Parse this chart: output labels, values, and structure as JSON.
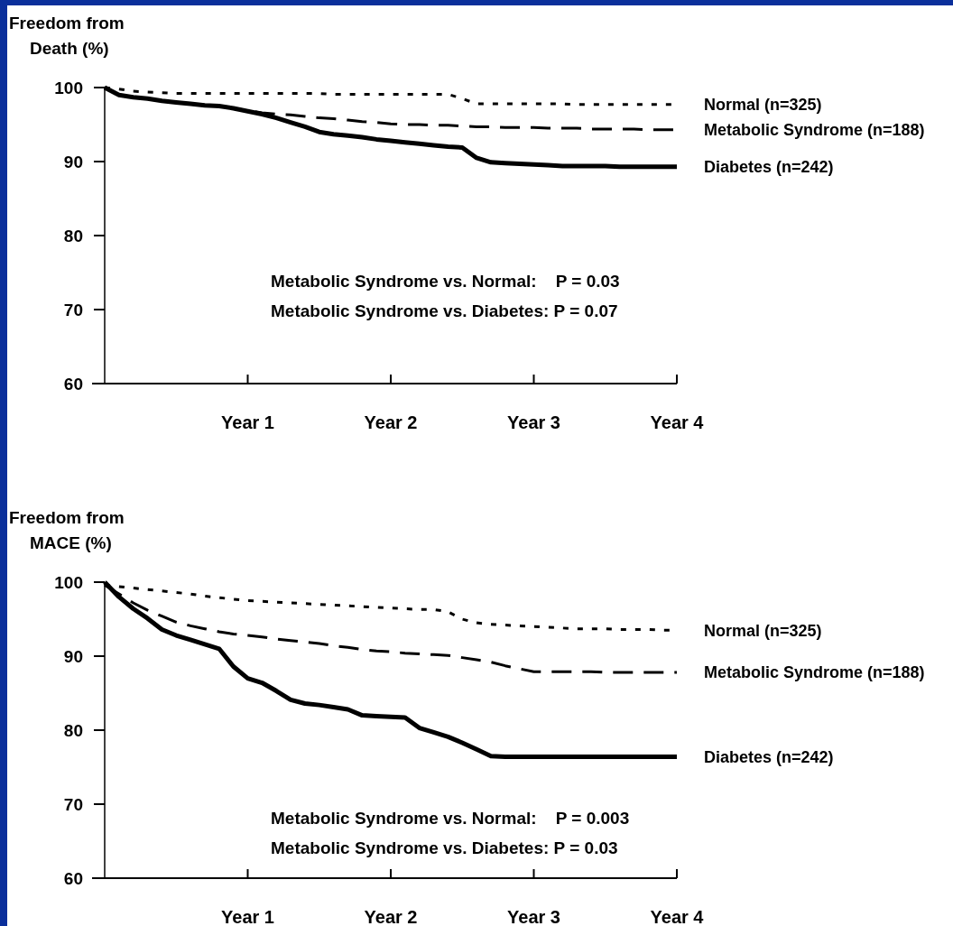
{
  "chart_data": [
    {
      "type": "line",
      "ylabel": "Freedom from\nDeath (%)",
      "categories": [
        null,
        null,
        null,
        null,
        null,
        null,
        null,
        null,
        null,
        null,
        "Year 1",
        null,
        null,
        null,
        null,
        null,
        null,
        null,
        null,
        null,
        "Year 2",
        null,
        null,
        null,
        null,
        null,
        null,
        null,
        null,
        null,
        "Year 3",
        null,
        null,
        null,
        null,
        null,
        null,
        null,
        null,
        null,
        "Year 4"
      ],
      "ylim": [
        60,
        100
      ],
      "yticks": [
        60,
        70,
        80,
        90,
        100
      ],
      "grid": false,
      "annotations": [
        "Metabolic Syndrome vs. Normal:    P = 0.03",
        "Metabolic Syndrome vs. Diabetes: P = 0.07"
      ],
      "series": [
        {
          "name": "Normal (n=325)",
          "color": "#000000",
          "line_style": "dotted",
          "values": [
            100,
            99.8,
            99.5,
            99.4,
            99.3,
            99.2,
            99.2,
            99.2,
            99.2,
            99.2,
            99.2,
            99.2,
            99.2,
            99.2,
            99.2,
            99.2,
            99.1,
            99.1,
            99.1,
            99.1,
            99.1,
            99.1,
            99.1,
            99.1,
            99.1,
            98.5,
            97.8,
            97.8,
            97.8,
            97.8,
            97.8,
            97.8,
            97.8,
            97.7,
            97.7,
            97.7,
            97.7,
            97.7,
            97.7,
            97.7,
            97.7
          ]
        },
        {
          "name": "Metabolic Syndrome (n=188)",
          "color": "#000000",
          "line_style": "dashed",
          "values": [
            100,
            99.0,
            98.7,
            98.5,
            98.2,
            98.0,
            97.8,
            97.6,
            97.5,
            97.2,
            96.9,
            96.6,
            96.4,
            96.3,
            96.1,
            95.9,
            95.8,
            95.6,
            95.4,
            95.3,
            95.1,
            95.0,
            95.0,
            94.9,
            94.9,
            94.8,
            94.7,
            94.7,
            94.6,
            94.6,
            94.6,
            94.5,
            94.5,
            94.5,
            94.4,
            94.4,
            94.4,
            94.4,
            94.3,
            94.3,
            94.3
          ]
        },
        {
          "name": "Diabetes (n=242)",
          "color": "#000000",
          "line_style": "solid",
          "values": [
            100,
            99.0,
            98.7,
            98.5,
            98.2,
            98.0,
            97.8,
            97.6,
            97.5,
            97.2,
            96.8,
            96.4,
            95.9,
            95.3,
            94.7,
            94.0,
            93.7,
            93.5,
            93.3,
            93.0,
            92.8,
            92.6,
            92.4,
            92.2,
            92.0,
            91.9,
            90.5,
            89.9,
            89.8,
            89.7,
            89.6,
            89.5,
            89.4,
            89.4,
            89.4,
            89.4,
            89.3,
            89.3,
            89.3,
            89.3,
            89.3
          ]
        }
      ]
    },
    {
      "type": "line",
      "ylabel": "Freedom from\nMACE (%)",
      "categories": [
        null,
        null,
        null,
        null,
        null,
        null,
        null,
        null,
        null,
        null,
        "Year 1",
        null,
        null,
        null,
        null,
        null,
        null,
        null,
        null,
        null,
        "Year 2",
        null,
        null,
        null,
        null,
        null,
        null,
        null,
        null,
        null,
        "Year 3",
        null,
        null,
        null,
        null,
        null,
        null,
        null,
        null,
        null,
        "Year 4"
      ],
      "ylim": [
        60,
        100
      ],
      "yticks": [
        60,
        70,
        80,
        90,
        100
      ],
      "grid": false,
      "annotations": [
        "Metabolic Syndrome vs. Normal:    P = 0.003",
        "Metabolic Syndrome vs. Diabetes: P = 0.03"
      ],
      "series": [
        {
          "name": "Normal (n=325)",
          "color": "#000000",
          "line_style": "dotted",
          "values": [
            99.6,
            99.4,
            99.2,
            99.0,
            98.8,
            98.6,
            98.4,
            98.1,
            97.9,
            97.7,
            97.5,
            97.4,
            97.3,
            97.2,
            97.1,
            97.0,
            96.9,
            96.8,
            96.7,
            96.6,
            96.5,
            96.4,
            96.3,
            96.3,
            96.0,
            95.0,
            94.5,
            94.3,
            94.2,
            94.1,
            94.0,
            93.9,
            93.8,
            93.7,
            93.7,
            93.7,
            93.6,
            93.6,
            93.6,
            93.5,
            93.5
          ]
        },
        {
          "name": "Metabolic Syndrome (n=188)",
          "color": "#000000",
          "line_style": "dashed",
          "values": [
            99.6,
            98.4,
            97.2,
            96.2,
            95.4,
            94.6,
            94.1,
            93.7,
            93.3,
            93.0,
            92.8,
            92.6,
            92.3,
            92.1,
            91.9,
            91.7,
            91.4,
            91.2,
            90.9,
            90.7,
            90.6,
            90.4,
            90.3,
            90.2,
            90.1,
            89.8,
            89.5,
            89.2,
            88.7,
            88.3,
            87.9,
            87.9,
            87.9,
            87.9,
            87.9,
            87.8,
            87.8,
            87.8,
            87.8,
            87.8,
            87.8
          ]
        },
        {
          "name": "Diabetes (n=242)",
          "color": "#000000",
          "line_style": "solid",
          "values": [
            100,
            98.0,
            96.4,
            95.1,
            93.6,
            92.8,
            92.2,
            91.6,
            91.0,
            88.6,
            87.0,
            86.4,
            85.3,
            84.1,
            83.6,
            83.4,
            83.1,
            82.8,
            82.0,
            81.9,
            81.8,
            81.7,
            80.3,
            79.7,
            79.1,
            78.3,
            77.4,
            76.5,
            76.4,
            76.4,
            76.4,
            76.4,
            76.4,
            76.4,
            76.4,
            76.4,
            76.4,
            76.4,
            76.4,
            76.4,
            76.4
          ]
        }
      ]
    }
  ]
}
